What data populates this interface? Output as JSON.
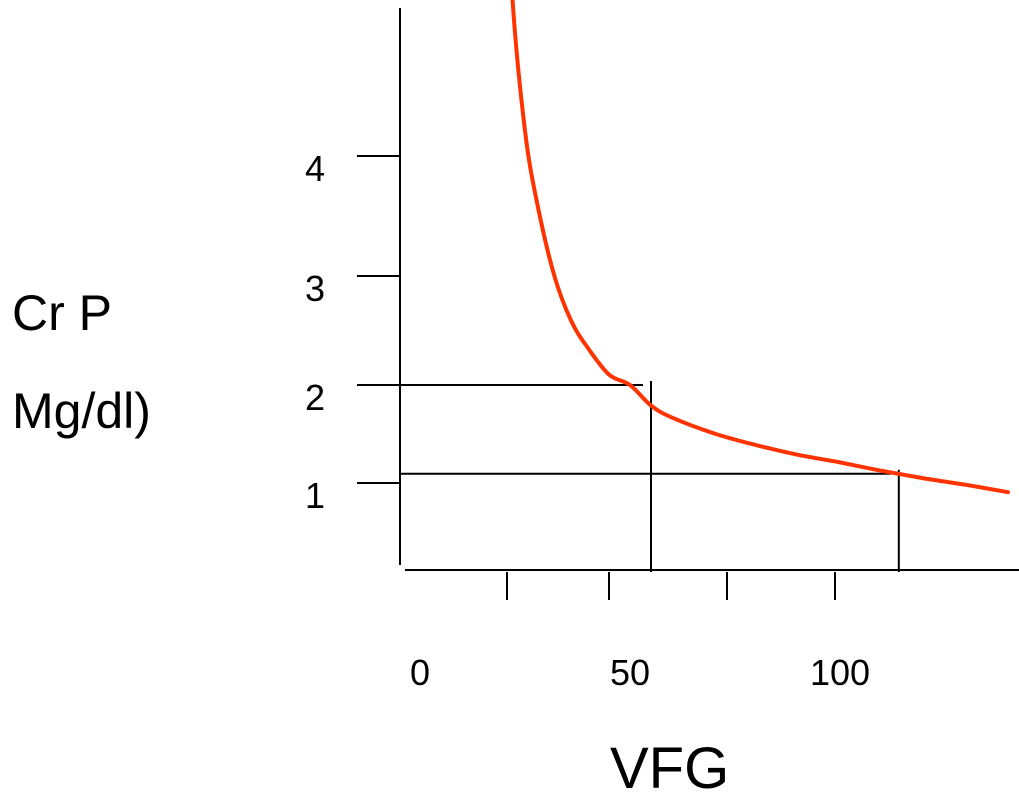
{
  "chart_data": {
    "type": "line",
    "title": "",
    "xlabel": "VFG",
    "ylabel_lines": [
      "Cr P",
      "Mg/dl)"
    ],
    "x_ticks": [
      {
        "label": "0",
        "value": 0
      },
      {
        "label": "50",
        "value": 50
      },
      {
        "label": "100",
        "value": 100
      }
    ],
    "y_ticks": [
      {
        "label": "1",
        "value": 1
      },
      {
        "label": "2",
        "value": 2
      },
      {
        "label": "3",
        "value": 3
      },
      {
        "label": "4",
        "value": 4
      }
    ],
    "series": [
      {
        "color": "#ff3300",
        "x": [
          20,
          22,
          25,
          28,
          32,
          36,
          40,
          45,
          50,
          55,
          60,
          70,
          80,
          90,
          100,
          110,
          120,
          130,
          140
        ],
        "y": [
          6.5,
          5.2,
          4.2,
          3.6,
          3.0,
          2.6,
          2.35,
          2.1,
          2.0,
          1.8,
          1.68,
          1.52,
          1.4,
          1.3,
          1.22,
          1.13,
          1.05,
          0.98,
          0.9
        ]
      }
    ],
    "reference_lines": [
      {
        "x": 55,
        "y": 2
      },
      {
        "x": 114,
        "y": 1.1
      }
    ]
  }
}
